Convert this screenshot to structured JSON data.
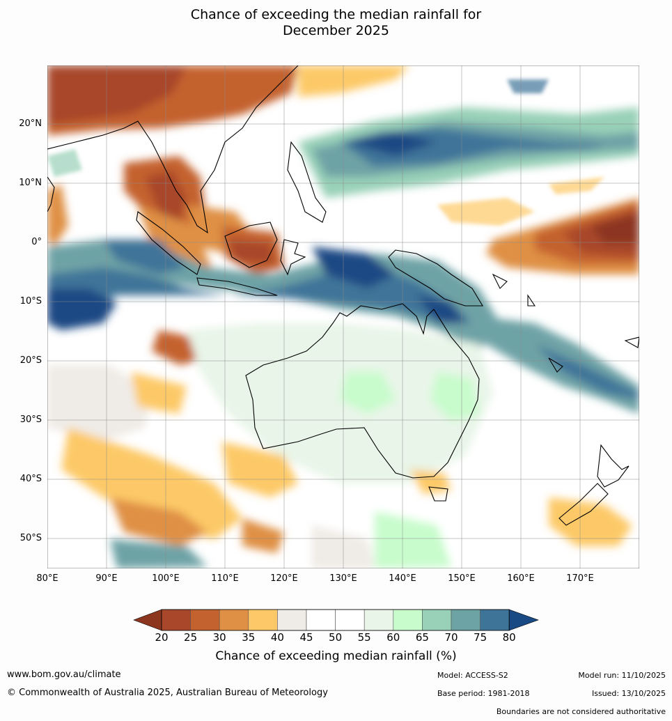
{
  "title": {
    "line1": "Chance of exceeding the median rainfall for",
    "line2": "December 2025"
  },
  "map": {
    "lat_labels": [
      "20°N",
      "10°N",
      "0°",
      "10°S",
      "20°S",
      "30°S",
      "40°S",
      "50°S"
    ],
    "lon_labels": [
      "80°E",
      "90°E",
      "100°E",
      "110°E",
      "120°E",
      "130°E",
      "140°E",
      "150°E",
      "160°E",
      "170°E"
    ]
  },
  "legend": {
    "ticks": [
      "20",
      "25",
      "30",
      "35",
      "40",
      "45",
      "50",
      "55",
      "60",
      "65",
      "70",
      "75",
      "80"
    ],
    "colors": [
      "#8c3620",
      "#a8472a",
      "#c4622f",
      "#df9044",
      "#fdc968",
      "#efebe6",
      "#ffffff",
      "#ffffff",
      "#e8f5e8",
      "#c8fccc",
      "#98d0b8",
      "#6ea3a6",
      "#3f7499",
      "#1a4a84"
    ],
    "label": "Chance of exceeding median rainfall (%)"
  },
  "footer": {
    "website": "www.bom.gov.au/climate",
    "copyright": "© Commonwealth of Australia 2025, Australian Bureau of Meteorology",
    "model": "Model: ACCESS-S2",
    "base_period": "Base period: 1981-2018",
    "model_run": "Model run: 11/10/2025",
    "issued": "Issued: 13/10/2025",
    "disclaimer": "Boundaries are not considered authoritative"
  }
}
